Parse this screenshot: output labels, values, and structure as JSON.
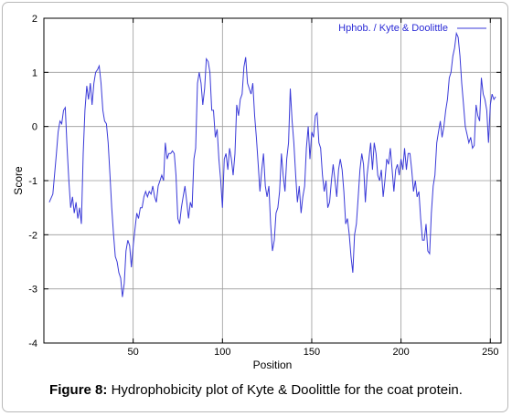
{
  "caption": {
    "bold": "Figure 8:",
    "text": "Hydrophobicity plot of Kyte & Doolittle for the coat protein."
  },
  "chart_data": {
    "type": "line",
    "xlabel": "Position",
    "ylabel": "Score",
    "xlim": [
      0,
      256
    ],
    "ylim": [
      -4,
      2
    ],
    "xticks": [
      50,
      100,
      150,
      200,
      250
    ],
    "yticks": [
      2,
      1,
      0,
      -1,
      -2,
      -3,
      -4
    ],
    "grid": true,
    "legend_position": "top-right",
    "line_color": "#3a3ad8",
    "series": [
      {
        "name": "Hphob. / Kyte & Doolittle",
        "points": [
          [
            3,
            -1.4
          ],
          [
            5,
            -1.25
          ],
          [
            7,
            -0.5
          ],
          [
            8,
            -0.1
          ],
          [
            9,
            0.1
          ],
          [
            10,
            0.05
          ],
          [
            11,
            0.3
          ],
          [
            12,
            0.35
          ],
          [
            13,
            -0.4
          ],
          [
            14,
            -1.0
          ],
          [
            15,
            -1.5
          ],
          [
            16,
            -1.3
          ],
          [
            17,
            -1.6
          ],
          [
            18,
            -1.4
          ],
          [
            19,
            -1.7
          ],
          [
            20,
            -1.5
          ],
          [
            21,
            -1.8
          ],
          [
            22,
            -0.5
          ],
          [
            23,
            0.3
          ],
          [
            24,
            0.75
          ],
          [
            25,
            0.5
          ],
          [
            26,
            0.8
          ],
          [
            27,
            0.4
          ],
          [
            28,
            0.8
          ],
          [
            29,
            1.0
          ],
          [
            30,
            1.05
          ],
          [
            31,
            1.12
          ],
          [
            32,
            0.8
          ],
          [
            33,
            0.3
          ],
          [
            34,
            0.1
          ],
          [
            35,
            0.05
          ],
          [
            36,
            -0.3
          ],
          [
            37,
            -0.9
          ],
          [
            38,
            -1.5
          ],
          [
            39,
            -2.0
          ],
          [
            40,
            -2.4
          ],
          [
            41,
            -2.5
          ],
          [
            42,
            -2.7
          ],
          [
            43,
            -2.8
          ],
          [
            44,
            -3.15
          ],
          [
            45,
            -2.9
          ],
          [
            46,
            -2.3
          ],
          [
            47,
            -2.1
          ],
          [
            48,
            -2.2
          ],
          [
            49,
            -2.6
          ],
          [
            50,
            -2.2
          ],
          [
            51,
            -1.9
          ],
          [
            52,
            -1.6
          ],
          [
            53,
            -1.7
          ],
          [
            54,
            -1.5
          ],
          [
            55,
            -1.5
          ],
          [
            56,
            -1.3
          ],
          [
            57,
            -1.2
          ],
          [
            58,
            -1.3
          ],
          [
            59,
            -1.2
          ],
          [
            60,
            -1.25
          ],
          [
            61,
            -1.1
          ],
          [
            62,
            -1.3
          ],
          [
            63,
            -1.4
          ],
          [
            64,
            -1.1
          ],
          [
            65,
            -1.0
          ],
          [
            66,
            -0.9
          ],
          [
            67,
            -1.0
          ],
          [
            68,
            -0.3
          ],
          [
            69,
            -0.6
          ],
          [
            70,
            -0.5
          ],
          [
            71,
            -0.5
          ],
          [
            72,
            -0.45
          ],
          [
            73,
            -0.5
          ],
          [
            74,
            -0.9
          ],
          [
            75,
            -1.7
          ],
          [
            76,
            -1.8
          ],
          [
            77,
            -1.5
          ],
          [
            78,
            -1.3
          ],
          [
            79,
            -1.1
          ],
          [
            80,
            -1.4
          ],
          [
            81,
            -1.7
          ],
          [
            82,
            -1.4
          ],
          [
            83,
            -1.5
          ],
          [
            84,
            -0.6
          ],
          [
            85,
            -0.4
          ],
          [
            86,
            0.8
          ],
          [
            87,
            1.0
          ],
          [
            88,
            0.8
          ],
          [
            89,
            0.4
          ],
          [
            90,
            0.7
          ],
          [
            91,
            1.25
          ],
          [
            92,
            1.2
          ],
          [
            93,
            1.0
          ],
          [
            94,
            0.3
          ],
          [
            95,
            0.3
          ],
          [
            96,
            -0.2
          ],
          [
            97,
            -0.05
          ],
          [
            98,
            -0.6
          ],
          [
            99,
            -1.0
          ],
          [
            100,
            -1.5
          ],
          [
            101,
            -0.6
          ],
          [
            102,
            -0.5
          ],
          [
            103,
            -0.8
          ],
          [
            104,
            -0.4
          ],
          [
            105,
            -0.6
          ],
          [
            106,
            -0.9
          ],
          [
            107,
            -0.5
          ],
          [
            108,
            0.4
          ],
          [
            109,
            0.2
          ],
          [
            110,
            0.5
          ],
          [
            111,
            0.6
          ],
          [
            112,
            1.1
          ],
          [
            113,
            1.28
          ],
          [
            114,
            0.8
          ],
          [
            115,
            0.7
          ],
          [
            116,
            0.6
          ],
          [
            117,
            0.8
          ],
          [
            118,
            0.2
          ],
          [
            119,
            -0.2
          ],
          [
            120,
            -0.7
          ],
          [
            121,
            -1.2
          ],
          [
            122,
            -0.8
          ],
          [
            123,
            -0.5
          ],
          [
            124,
            -1.1
          ],
          [
            125,
            -1.3
          ],
          [
            126,
            -1.1
          ],
          [
            127,
            -1.8
          ],
          [
            128,
            -2.3
          ],
          [
            129,
            -2.1
          ],
          [
            130,
            -1.6
          ],
          [
            131,
            -1.5
          ],
          [
            132,
            -1.2
          ],
          [
            133,
            -0.5
          ],
          [
            134,
            -0.9
          ],
          [
            135,
            -1.2
          ],
          [
            136,
            -0.6
          ],
          [
            137,
            -0.3
          ],
          [
            138,
            0.7
          ],
          [
            139,
            0.1
          ],
          [
            140,
            -0.3
          ],
          [
            141,
            -0.9
          ],
          [
            142,
            -1.4
          ],
          [
            143,
            -1.1
          ],
          [
            144,
            -1.6
          ],
          [
            145,
            -1.3
          ],
          [
            146,
            -1.1
          ],
          [
            147,
            -0.4
          ],
          [
            148,
            0.0
          ],
          [
            149,
            -0.6
          ],
          [
            150,
            -0.1
          ],
          [
            151,
            -0.2
          ],
          [
            152,
            0.2
          ],
          [
            153,
            0.25
          ],
          [
            154,
            -0.3
          ],
          [
            155,
            -0.4
          ],
          [
            156,
            -0.9
          ],
          [
            157,
            -1.2
          ],
          [
            158,
            -1.0
          ],
          [
            159,
            -1.5
          ],
          [
            160,
            -1.4
          ],
          [
            161,
            -1.0
          ],
          [
            162,
            -0.7
          ],
          [
            163,
            -1.0
          ],
          [
            164,
            -1.3
          ],
          [
            165,
            -0.8
          ],
          [
            166,
            -0.6
          ],
          [
            167,
            -0.8
          ],
          [
            168,
            -1.2
          ],
          [
            169,
            -1.8
          ],
          [
            170,
            -1.7
          ],
          [
            171,
            -2.0
          ],
          [
            172,
            -2.4
          ],
          [
            173,
            -2.7
          ],
          [
            174,
            -2.0
          ],
          [
            175,
            -1.8
          ],
          [
            176,
            -1.3
          ],
          [
            177,
            -0.8
          ],
          [
            178,
            -0.5
          ],
          [
            179,
            -0.7
          ],
          [
            180,
            -1.4
          ],
          [
            181,
            -0.9
          ],
          [
            182,
            -0.6
          ],
          [
            183,
            -0.3
          ],
          [
            184,
            -0.8
          ],
          [
            185,
            -0.3
          ],
          [
            186,
            -0.5
          ],
          [
            187,
            -0.9
          ],
          [
            188,
            -1.0
          ],
          [
            189,
            -0.8
          ],
          [
            190,
            -1.3
          ],
          [
            191,
            -1.0
          ],
          [
            192,
            -0.6
          ],
          [
            193,
            -0.7
          ],
          [
            194,
            -0.4
          ],
          [
            195,
            -0.8
          ],
          [
            196,
            -1.2
          ],
          [
            197,
            -0.8
          ],
          [
            198,
            -0.7
          ],
          [
            199,
            -0.9
          ],
          [
            200,
            -0.6
          ],
          [
            201,
            -0.8
          ],
          [
            202,
            -0.4
          ],
          [
            203,
            -0.8
          ],
          [
            204,
            -0.5
          ],
          [
            205,
            -0.5
          ],
          [
            206,
            -0.8
          ],
          [
            207,
            -1.2
          ],
          [
            208,
            -1.0
          ],
          [
            209,
            -1.3
          ],
          [
            210,
            -1.2
          ],
          [
            211,
            -1.7
          ],
          [
            212,
            -2.1
          ],
          [
            213,
            -2.1
          ],
          [
            214,
            -1.8
          ],
          [
            215,
            -2.3
          ],
          [
            216,
            -2.35
          ],
          [
            217,
            -1.6
          ],
          [
            218,
            -1.1
          ],
          [
            219,
            -0.9
          ],
          [
            220,
            -0.3
          ],
          [
            221,
            -0.1
          ],
          [
            222,
            0.1
          ],
          [
            223,
            -0.2
          ],
          [
            224,
            0.0
          ],
          [
            225,
            0.3
          ],
          [
            226,
            0.5
          ],
          [
            227,
            0.9
          ],
          [
            228,
            1.0
          ],
          [
            229,
            1.3
          ],
          [
            230,
            1.45
          ],
          [
            231,
            1.72
          ],
          [
            232,
            1.65
          ],
          [
            233,
            1.3
          ],
          [
            234,
            0.8
          ],
          [
            235,
            0.4
          ],
          [
            236,
            0.0
          ],
          [
            237,
            -0.15
          ],
          [
            238,
            -0.3
          ],
          [
            239,
            -0.2
          ],
          [
            240,
            -0.4
          ],
          [
            241,
            -0.35
          ],
          [
            242,
            0.4
          ],
          [
            243,
            0.2
          ],
          [
            244,
            0.1
          ],
          [
            245,
            0.9
          ],
          [
            246,
            0.6
          ],
          [
            247,
            0.5
          ],
          [
            248,
            0.3
          ],
          [
            249,
            -0.3
          ],
          [
            250,
            0.4
          ],
          [
            251,
            0.6
          ],
          [
            252,
            0.5
          ],
          [
            253,
            0.55
          ]
        ]
      }
    ]
  }
}
